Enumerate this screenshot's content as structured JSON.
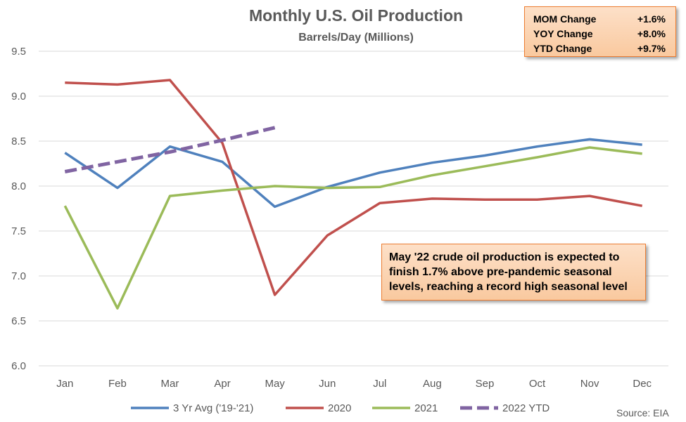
{
  "chart_data": {
    "type": "line",
    "title": "Monthly U.S. Oil Production",
    "subtitle": "Barrels/Day (Millions)",
    "categories": [
      "Jan",
      "Feb",
      "Mar",
      "Apr",
      "May",
      "Jun",
      "Jul",
      "Aug",
      "Sep",
      "Oct",
      "Nov",
      "Dec"
    ],
    "ylim": [
      6.0,
      9.5
    ],
    "yticks": [
      "6.0",
      "6.5",
      "7.0",
      "7.5",
      "8.0",
      "8.5",
      "9.0",
      "9.5"
    ],
    "grid": true,
    "legend_position": "bottom",
    "series": [
      {
        "name": "3 Yr Avg ('19-'21)",
        "color": "#4f81bd",
        "dashed": false,
        "values": [
          8.37,
          7.98,
          8.44,
          8.27,
          7.77,
          7.99,
          8.15,
          8.26,
          8.34,
          8.44,
          8.52,
          8.46
        ]
      },
      {
        "name": "2020",
        "color": "#c0504d",
        "dashed": false,
        "values": [
          9.15,
          9.13,
          9.18,
          8.48,
          6.79,
          7.45,
          7.81,
          7.86,
          7.85,
          7.85,
          7.89,
          7.78
        ]
      },
      {
        "name": "2021",
        "color": "#9bbb59",
        "dashed": false,
        "values": [
          7.78,
          6.64,
          7.89,
          7.95,
          8.0,
          7.98,
          7.99,
          8.12,
          8.22,
          8.32,
          8.43,
          8.36
        ]
      },
      {
        "name": "2022 YTD",
        "color": "#8064a2",
        "dashed": true,
        "values": [
          8.16,
          8.27,
          8.38,
          8.51,
          8.65,
          null,
          null,
          null,
          null,
          null,
          null,
          null
        ]
      }
    ]
  },
  "stats": [
    {
      "label": "MOM Change",
      "value": "+1.6%"
    },
    {
      "label": "YOY Change",
      "value": "+8.0%"
    },
    {
      "label": "YTD Change",
      "value": "+9.7%"
    }
  ],
  "annotation": "May '22 crude oil production is expected to finish 1.7% above pre-pandemic seasonal levels, reaching a record high seasonal level",
  "source": "Source: EIA"
}
